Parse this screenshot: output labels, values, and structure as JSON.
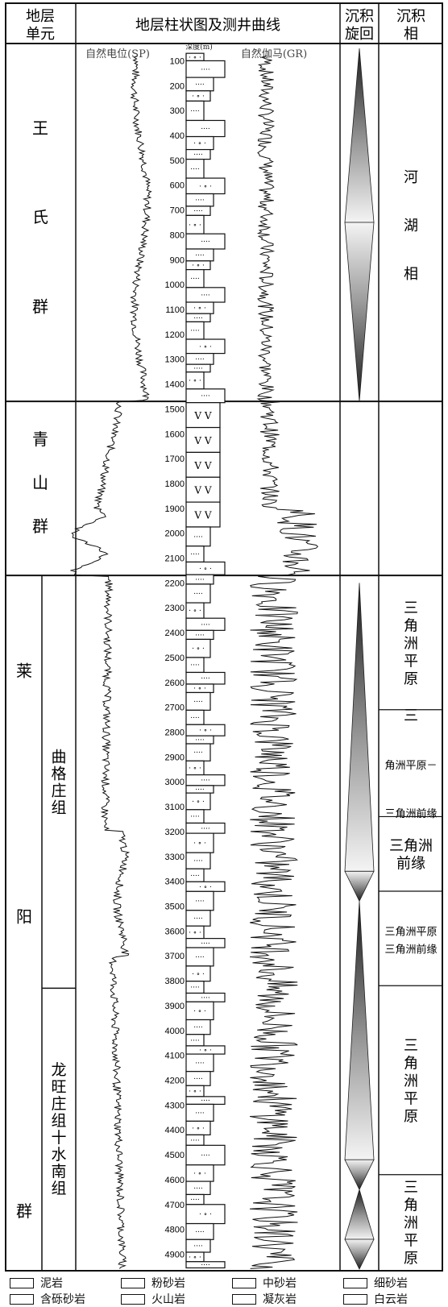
{
  "header": {
    "unit": "地层单元",
    "column": "地层柱状图及测井曲线",
    "cycle": "沉积旋回",
    "facies": "沉积相"
  },
  "curves": {
    "sp": "自然电位(SP)",
    "depth": "深度(m)",
    "gr": "自然伽马(GR)"
  },
  "depth": {
    "min": 50,
    "max": 4960,
    "ticks": [
      100,
      200,
      300,
      400,
      500,
      600,
      700,
      800,
      900,
      1000,
      1100,
      1200,
      1300,
      1400,
      1500,
      1600,
      1700,
      1800,
      1900,
      2000,
      2100,
      2200,
      2300,
      2400,
      2500,
      2600,
      2700,
      2800,
      2900,
      3000,
      3100,
      3200,
      3300,
      3400,
      3500,
      3600,
      3700,
      3800,
      3900,
      4000,
      4100,
      4200,
      4300,
      4400,
      4500,
      4600,
      4700,
      4800,
      4900
    ]
  },
  "groups": [
    {
      "name": "王氏群",
      "chars": [
        "王",
        "氏",
        "群"
      ],
      "top": 50,
      "bottom": 1470
    },
    {
      "name": "青山群",
      "chars": [
        "青",
        "山",
        "群"
      ],
      "top": 1470,
      "bottom": 2170
    },
    {
      "name": "莱阳群",
      "chars": [
        "莱",
        "阳",
        "群"
      ],
      "top": 2170,
      "bottom": 4960
    }
  ],
  "formations": [
    {
      "name": "曲格庄组",
      "chars": [
        "曲",
        "格",
        "庄",
        "组"
      ],
      "top": 2170,
      "bottom": 3830
    },
    {
      "name": "龙旺庄组+水南组",
      "chars": [
        "龙",
        "旺",
        "庄",
        "组",
        "十",
        "水",
        "南",
        "组"
      ],
      "top": 3830,
      "bottom": 4960
    }
  ],
  "facies": [
    {
      "lines": [
        "河",
        "湖",
        "相"
      ],
      "top": 50,
      "bottom": 1470
    },
    {
      "lines": [],
      "top": 1470,
      "bottom": 2170
    },
    {
      "lines": [
        "三",
        "角",
        "洲",
        "平",
        "原"
      ],
      "top": 2170,
      "bottom": 2710
    },
    {
      "lines": [
        "三",
        "角洲平原－",
        "三角洲前缘"
      ],
      "top": 2710,
      "bottom": 3140
    },
    {
      "lines": [
        "三角洲",
        "前缘"
      ],
      "top": 3140,
      "bottom": 3440
    },
    {
      "lines": [
        "三角洲平原",
        "三角洲前缘"
      ],
      "top": 3440,
      "bottom": 3820
    },
    {
      "lines": [
        "三",
        "角",
        "洲",
        "平",
        "原"
      ],
      "top": 3820,
      "bottom": 4580
    },
    {
      "lines": [
        "三",
        "角",
        "洲",
        "平",
        "原"
      ],
      "top": 4580,
      "bottom": 4960
    }
  ],
  "cycles": [
    {
      "top": 50,
      "bottom": 750,
      "dir": "fining"
    },
    {
      "top": 750,
      "bottom": 1470,
      "dir": "coarsening"
    },
    {
      "top": 2200,
      "bottom": 3360,
      "dir": "fining"
    },
    {
      "top": 3360,
      "bottom": 3480,
      "dir": "coarsening"
    },
    {
      "top": 3480,
      "bottom": 4520,
      "dir": "fining"
    },
    {
      "top": 4520,
      "bottom": 4640,
      "dir": "coarsening"
    },
    {
      "top": 4640,
      "bottom": 4840,
      "dir": "fining"
    },
    {
      "top": 4840,
      "bottom": 4960,
      "dir": "coarsening"
    }
  ],
  "legend": [
    {
      "label": "泥岩",
      "pattern": "mudstone"
    },
    {
      "label": "粉砂岩",
      "pattern": "siltstone"
    },
    {
      "label": "中砂岩",
      "pattern": "medium-sandstone"
    },
    {
      "label": "细砂岩",
      "pattern": "fine-sandstone"
    },
    {
      "label": "含砾砂岩",
      "pattern": "pebbly-sandstone"
    },
    {
      "label": "火山岩",
      "pattern": "volcanic"
    },
    {
      "label": "凝灰岩",
      "pattern": "tuff"
    },
    {
      "label": "白云岩",
      "pattern": "dolomite"
    }
  ]
}
